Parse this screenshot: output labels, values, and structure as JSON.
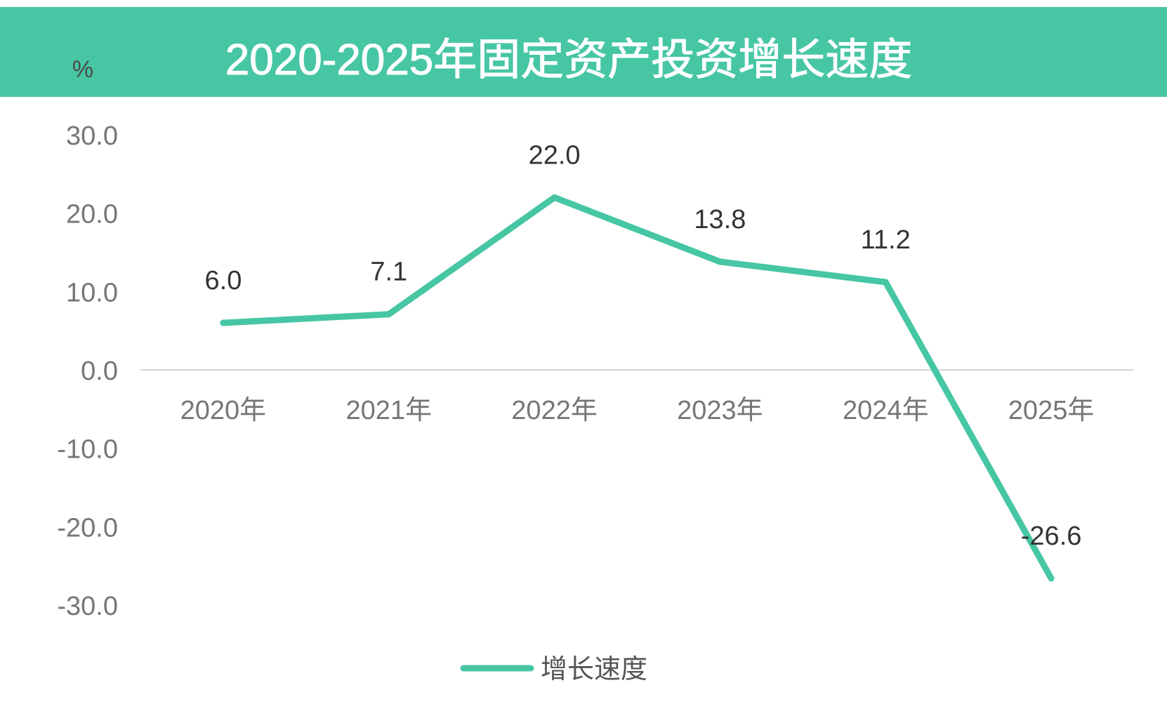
{
  "chart_data": {
    "type": "line",
    "title": "2020-2025年固定资产投资增长速度",
    "unit_label": "%",
    "categories": [
      "2020年",
      "2021年",
      "2022年",
      "2023年",
      "2024年",
      "2025年"
    ],
    "series": [
      {
        "name": "增长速度",
        "values": [
          6.0,
          7.1,
          22.0,
          13.8,
          11.2,
          -26.6
        ],
        "labels": [
          "6.0",
          "7.1",
          "22.0",
          "13.8",
          "11.2",
          "-26.6"
        ],
        "color": "#47c6a4"
      }
    ],
    "ylim": [
      -30,
      30
    ],
    "yticks": [
      30,
      20,
      10,
      0,
      -10,
      -20,
      -30
    ],
    "ytick_labels": [
      "30.0",
      "20.0",
      "10.0",
      "0.0",
      "-10.0",
      "-20.0",
      "-30.0"
    ],
    "grid": false,
    "zero_line": true,
    "legend_position": "bottom",
    "colors": {
      "header_bg": "#47c6a4",
      "title_text": "#ffffff",
      "axis_text": "#767676",
      "label_text": "#333333",
      "zero_line": "#d4d4d4"
    }
  }
}
